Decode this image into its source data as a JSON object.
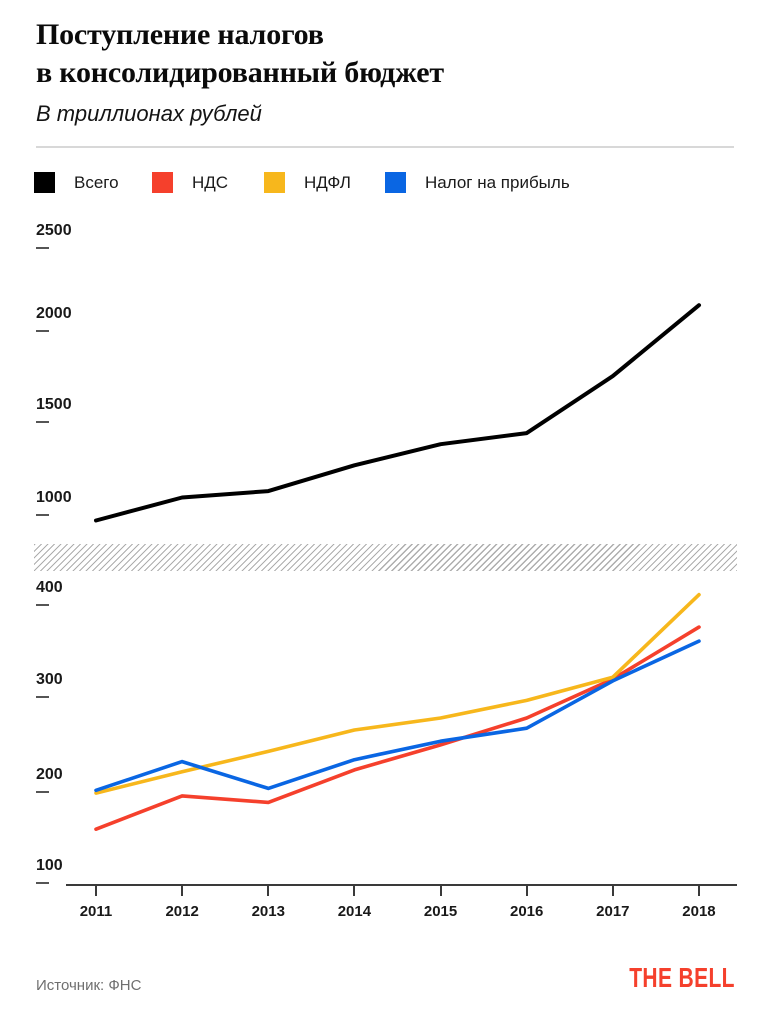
{
  "header": {
    "title_line1": "Поступление налогов",
    "title_line2": "в консолидированный бюджет",
    "subtitle": "В триллионах рублей"
  },
  "legend": {
    "items": [
      {
        "label": "Всего",
        "color": "#000000"
      },
      {
        "label": "НДС",
        "color": "#f5402c"
      },
      {
        "label": "НДФЛ",
        "color": "#f7b71c"
      },
      {
        "label": "Налог на прибыль",
        "color": "#0a66e3"
      }
    ]
  },
  "chart_data": [
    {
      "type": "line",
      "title": "Поступление налогов в консолидированный бюджет — Всего",
      "categories": [
        "2011",
        "2012",
        "2013",
        "2014",
        "2015",
        "2016",
        "2017",
        "2018"
      ],
      "series": [
        {
          "name": "Всего",
          "color": "#000000",
          "values": [
            970,
            1095,
            1130,
            1270,
            1385,
            1445,
            1755,
            2140
          ]
        }
      ],
      "yticks": [
        1000,
        1500,
        2000,
        2500
      ],
      "ylim": [
        950,
        2550
      ],
      "grid": false,
      "legend_position": "top"
    },
    {
      "type": "line",
      "title": "Поступление налогов в консолидированный бюджет — по видам налогов",
      "categories": [
        "2011",
        "2012",
        "2013",
        "2014",
        "2015",
        "2016",
        "2017",
        "2018"
      ],
      "series": [
        {
          "name": "НДС",
          "color": "#f5402c",
          "values": [
            158,
            194,
            187,
            222,
            249,
            278,
            320,
            376
          ]
        },
        {
          "name": "НДФЛ",
          "color": "#f7b71c",
          "values": [
            197,
            220,
            242,
            265,
            278,
            297,
            322,
            411
          ]
        },
        {
          "name": "Налог на прибыль",
          "color": "#0a66e3",
          "values": [
            200,
            231,
            202,
            233,
            253,
            267,
            318,
            361
          ]
        }
      ],
      "yticks": [
        100,
        200,
        300,
        400
      ],
      "ylim": [
        100,
        420
      ],
      "grid": false,
      "legend_position": "top"
    }
  ],
  "footer": {
    "source": "Источник: ФНС",
    "logo": "THE BELL"
  }
}
